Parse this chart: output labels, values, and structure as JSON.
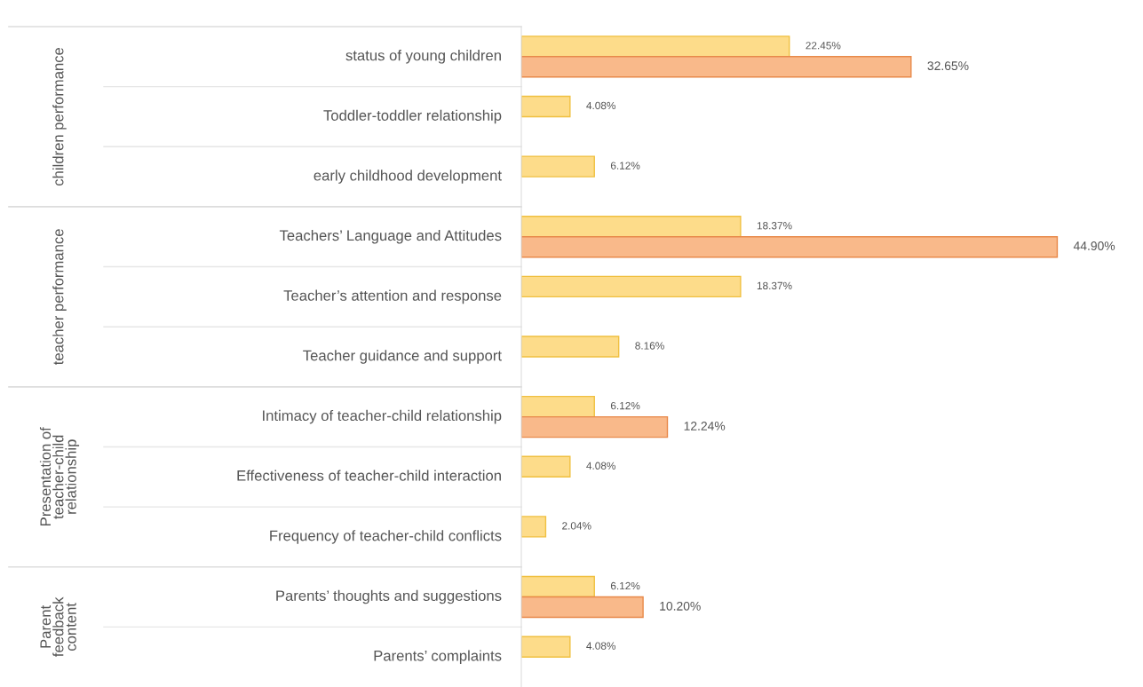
{
  "chart_data": {
    "type": "bar",
    "orientation": "horizontal",
    "categories": [
      "status of young children",
      "Toddler-toddler relationship",
      "early childhood development",
      "Teachers’ Language and Attitudes",
      "Teacher’s attention and response",
      "Teacher guidance and support",
      "Intimacy of teacher-child relationship",
      "Effectiveness of teacher-child interaction",
      "Frequency of teacher-child conflicts",
      "Parents’ thoughts and suggestions",
      "Parents’ complaints"
    ],
    "series": [
      {
        "color": "#fddc8a",
        "values": [
          22.45,
          4.08,
          6.12,
          18.37,
          18.37,
          8.16,
          6.12,
          4.08,
          2.04,
          6.12,
          4.08
        ],
        "value_labels": [
          "22.45%",
          "4.08%",
          "6.12%",
          "18.37%",
          "18.37%",
          "8.16%",
          "6.12%",
          "4.08%",
          "2.04%",
          "6.12%",
          "4.08%"
        ]
      },
      {
        "color": "#f9b98a",
        "values": [
          32.65,
          null,
          null,
          44.9,
          null,
          null,
          12.24,
          null,
          null,
          10.2,
          null
        ],
        "value_labels": [
          "32.65%",
          null,
          null,
          "44.90%",
          null,
          null,
          "12.24%",
          null,
          null,
          "10.20%",
          null
        ]
      }
    ],
    "annotations": [
      "children performance",
      "teacher performance",
      "Presentation of\nteacher-child\nrelationship",
      "Parent\nfeedback\ncontent"
    ],
    "legend": false
  }
}
